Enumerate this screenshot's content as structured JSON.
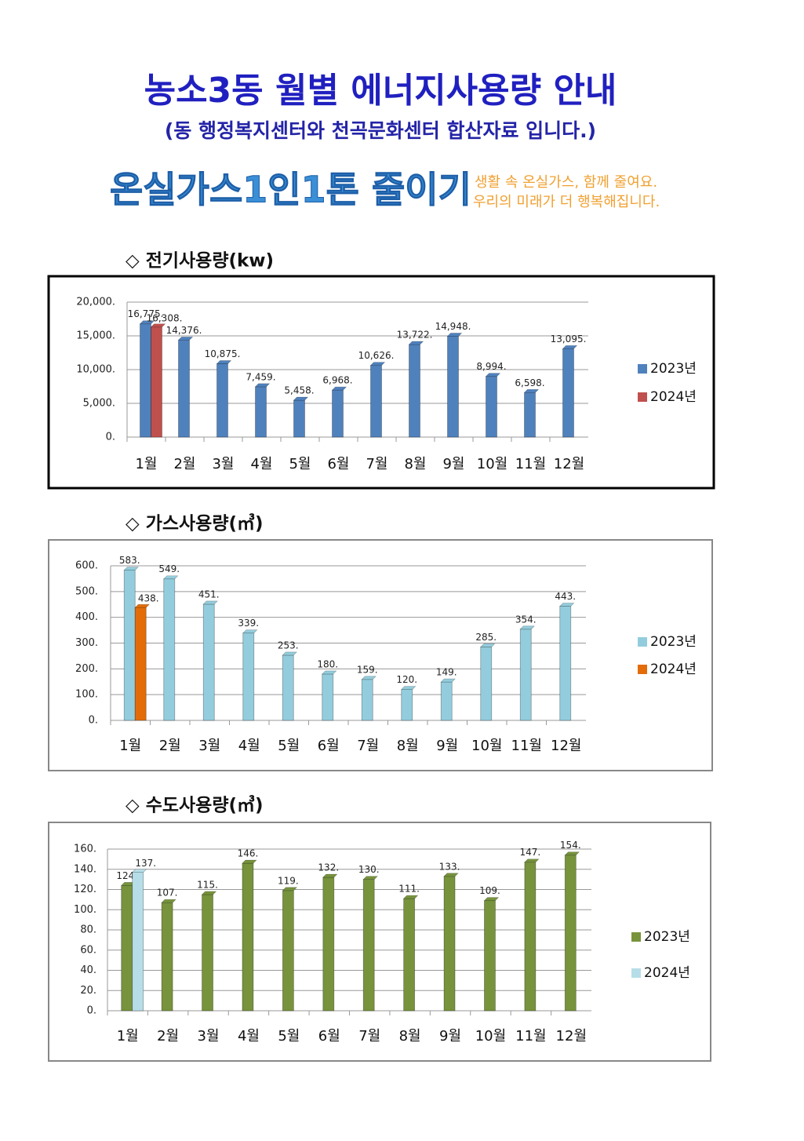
{
  "header": {
    "title": "농소3동 월별 에너지사용량 안내",
    "subtitle": "(동 행정복지센터와 천곡문화센터 합산자료 입니다.)",
    "banner": "온실가스1인1톤 줄이기",
    "slogan_line1": "생활 속 온실가스, 함께 줄여요.",
    "slogan_line2": "우리의 미래가 더 행복해집니다."
  },
  "chart_data": [
    {
      "type": "bar",
      "title": "◇ 전기사용량(kw)",
      "categories": [
        "1월",
        "2월",
        "3월",
        "4월",
        "5월",
        "6월",
        "7월",
        "8월",
        "9월",
        "10월",
        "11월",
        "12월"
      ],
      "series": [
        {
          "name": "2023년",
          "color": "#4f81bd",
          "values": [
            16775,
            14376,
            10875,
            7459,
            5458,
            6968,
            10626,
            13722,
            14948,
            8994,
            6598,
            13095
          ],
          "value_labels": [
            "16,775.",
            "14,376.",
            "10,875.",
            "7,459.",
            "5,458.",
            "6,968.",
            "10,626.",
            "13,722.",
            "14,948.",
            "8,994.",
            "6,598.",
            "13,095."
          ]
        },
        {
          "name": "2024년",
          "color": "#c0504d",
          "values": [
            16308,
            null,
            null,
            null,
            null,
            null,
            null,
            null,
            null,
            null,
            null,
            null
          ],
          "value_labels": [
            "16,308.",
            null,
            null,
            null,
            null,
            null,
            null,
            null,
            null,
            null,
            null,
            null
          ]
        }
      ],
      "ylim": [
        0,
        20000
      ],
      "yticks": [
        {
          "value": 0,
          "label": "0."
        },
        {
          "value": 5000,
          "label": "5,000."
        },
        {
          "value": 10000,
          "label": "10,000."
        },
        {
          "value": 15000,
          "label": "15,000."
        },
        {
          "value": 20000,
          "label": "20,000."
        }
      ],
      "grid": true,
      "legend": "right"
    },
    {
      "type": "bar",
      "title": "◇ 가스사용량(㎥)",
      "categories": [
        "1월",
        "2월",
        "3월",
        "4월",
        "5월",
        "6월",
        "7월",
        "8월",
        "9월",
        "10월",
        "11월",
        "12월"
      ],
      "series": [
        {
          "name": "2023년",
          "color": "#93cddd",
          "values": [
            583,
            549,
            451,
            339,
            253,
            180,
            159,
            120,
            149,
            285,
            354,
            443
          ],
          "value_labels": [
            "583.",
            "549.",
            "451.",
            "339.",
            "253.",
            "180.",
            "159.",
            "120.",
            "149.",
            "285.",
            "354.",
            "443."
          ]
        },
        {
          "name": "2024년",
          "color": "#e36c09",
          "values": [
            438,
            null,
            null,
            null,
            null,
            null,
            null,
            null,
            null,
            null,
            null,
            null
          ],
          "value_labels": [
            "438.",
            null,
            null,
            null,
            null,
            null,
            null,
            null,
            null,
            null,
            null,
            null
          ]
        }
      ],
      "ylim": [
        0,
        600
      ],
      "yticks": [
        {
          "value": 0,
          "label": "0."
        },
        {
          "value": 100,
          "label": "100."
        },
        {
          "value": 200,
          "label": "200."
        },
        {
          "value": 300,
          "label": "300."
        },
        {
          "value": 400,
          "label": "400."
        },
        {
          "value": 500,
          "label": "500."
        },
        {
          "value": 600,
          "label": "600."
        }
      ],
      "grid": true,
      "legend": "right"
    },
    {
      "type": "bar",
      "title": "◇ 수도사용량(㎥)",
      "categories": [
        "1월",
        "2월",
        "3월",
        "4월",
        "5월",
        "6월",
        "7월",
        "8월",
        "9월",
        "10월",
        "11월",
        "12월"
      ],
      "series": [
        {
          "name": "2023년",
          "color": "#77933c",
          "values": [
            124,
            107,
            115,
            146,
            119,
            132,
            130,
            111,
            133,
            109,
            147,
            154
          ],
          "value_labels": [
            "124.",
            "107.",
            "115.",
            "146.",
            "119.",
            "132.",
            "130.",
            "111.",
            "133.",
            "109.",
            "147.",
            "154."
          ]
        },
        {
          "name": "2024년",
          "color": "#b7dee8",
          "values": [
            137,
            null,
            null,
            null,
            null,
            null,
            null,
            null,
            null,
            null,
            null,
            null
          ],
          "value_labels": [
            "137.",
            null,
            null,
            null,
            null,
            null,
            null,
            null,
            null,
            null,
            null,
            null
          ]
        }
      ],
      "ylim": [
        0,
        160
      ],
      "yticks": [
        {
          "value": 0,
          "label": "0."
        },
        {
          "value": 20,
          "label": "20."
        },
        {
          "value": 40,
          "label": "40."
        },
        {
          "value": 60,
          "label": "60."
        },
        {
          "value": 80,
          "label": "80."
        },
        {
          "value": 100,
          "label": "100."
        },
        {
          "value": 120,
          "label": "120."
        },
        {
          "value": 140,
          "label": "140."
        },
        {
          "value": 160,
          "label": "160."
        }
      ],
      "grid": true,
      "legend": "right"
    }
  ]
}
